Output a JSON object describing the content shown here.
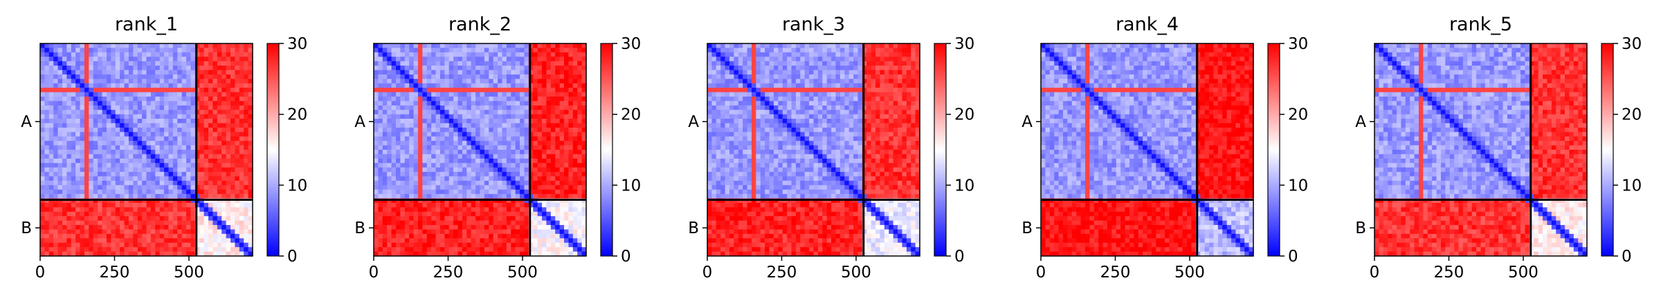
{
  "chart_data": [
    {
      "type": "heatmap",
      "title": "rank_1",
      "x_ticks": [
        0,
        250,
        500
      ],
      "x_tick_labels": [
        "0",
        "250",
        "500"
      ],
      "xlim": [
        0,
        714
      ],
      "chain_labels": [
        "A",
        "B"
      ],
      "chain_boundary": 525,
      "colorbar": {
        "min": 0,
        "max": 30,
        "ticks": [
          0,
          10,
          20,
          30
        ],
        "tick_labels": [
          "0",
          "10",
          "20",
          "30"
        ],
        "colormap": "bwr"
      },
      "block_levels": {
        "A-A": 9,
        "A-B": 27,
        "B-A": 27,
        "B-B": 16
      },
      "diagonal_value": 1
    },
    {
      "type": "heatmap",
      "title": "rank_2",
      "x_ticks": [
        0,
        250,
        500
      ],
      "x_tick_labels": [
        "0",
        "250",
        "500"
      ],
      "xlim": [
        0,
        714
      ],
      "chain_labels": [
        "A",
        "B"
      ],
      "chain_boundary": 525,
      "colorbar": {
        "min": 0,
        "max": 30,
        "ticks": [
          0,
          10,
          20,
          30
        ],
        "tick_labels": [
          "0",
          "10",
          "20",
          "30"
        ],
        "colormap": "bwr"
      },
      "block_levels": {
        "A-A": 9,
        "A-B": 28,
        "B-A": 28,
        "B-B": 15
      },
      "diagonal_value": 1
    },
    {
      "type": "heatmap",
      "title": "rank_3",
      "x_ticks": [
        0,
        250,
        500
      ],
      "x_tick_labels": [
        "0",
        "250",
        "500"
      ],
      "xlim": [
        0,
        714
      ],
      "chain_labels": [
        "A",
        "B"
      ],
      "chain_boundary": 525,
      "colorbar": {
        "min": 0,
        "max": 30,
        "ticks": [
          0,
          10,
          20,
          30
        ],
        "tick_labels": [
          "0",
          "10",
          "20",
          "30"
        ],
        "colormap": "bwr"
      },
      "block_levels": {
        "A-A": 9,
        "A-B": 27,
        "B-A": 28,
        "B-B": 14
      },
      "diagonal_value": 1
    },
    {
      "type": "heatmap",
      "title": "rank_4",
      "x_ticks": [
        0,
        250,
        500
      ],
      "x_tick_labels": [
        "0",
        "250",
        "500"
      ],
      "xlim": [
        0,
        714
      ],
      "chain_labels": [
        "A",
        "B"
      ],
      "chain_boundary": 525,
      "colorbar": {
        "min": 0,
        "max": 30,
        "ticks": [
          0,
          10,
          20,
          30
        ],
        "tick_labels": [
          "0",
          "10",
          "20",
          "30"
        ],
        "colormap": "bwr"
      },
      "block_levels": {
        "A-A": 9,
        "A-B": 29,
        "B-A": 29,
        "B-B": 11
      },
      "diagonal_value": 1
    },
    {
      "type": "heatmap",
      "title": "rank_5",
      "x_ticks": [
        0,
        250,
        500
      ],
      "x_tick_labels": [
        "0",
        "250",
        "500"
      ],
      "xlim": [
        0,
        714
      ],
      "chain_labels": [
        "A",
        "B"
      ],
      "chain_boundary": 525,
      "colorbar": {
        "min": 0,
        "max": 30,
        "ticks": [
          0,
          10,
          20,
          30
        ],
        "tick_labels": [
          "0",
          "10",
          "20",
          "30"
        ],
        "colormap": "bwr"
      },
      "block_levels": {
        "A-A": 9,
        "A-B": 27,
        "B-A": 27,
        "B-B": 16
      },
      "diagonal_value": 1
    }
  ]
}
